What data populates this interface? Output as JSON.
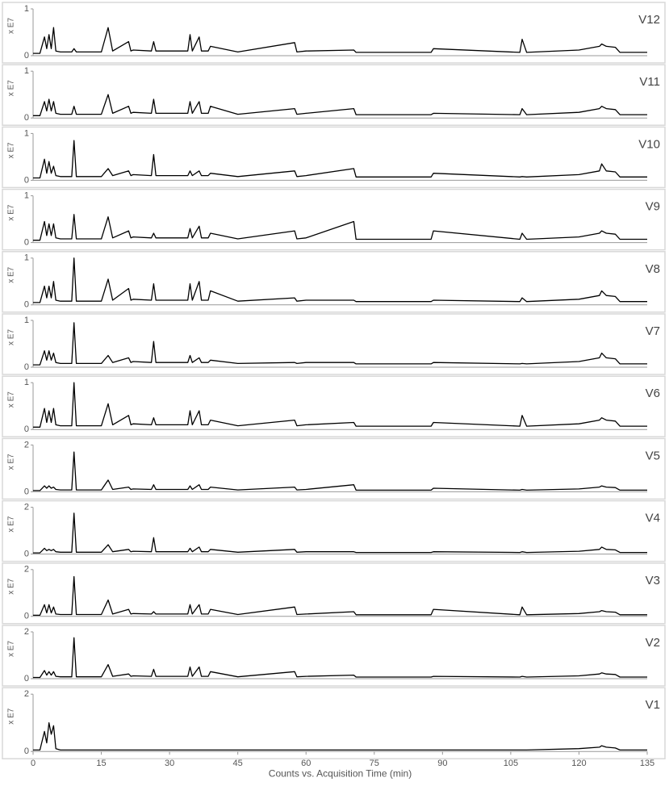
{
  "chart_data": [
    {
      "type": "line",
      "label": "V12",
      "ylabel": "x E7",
      "xlim": [
        0,
        135
      ],
      "ylim": [
        0,
        1
      ],
      "yticks": [
        0,
        1
      ],
      "color": "#000000",
      "x": [
        0,
        1.5,
        2.5,
        3,
        3.5,
        4,
        4.5,
        5,
        6,
        8.5,
        9,
        9.5,
        15,
        16.5,
        17.5,
        21,
        21.5,
        22,
        26,
        26.5,
        27,
        34,
        34.5,
        35,
        36.5,
        37,
        38.5,
        39,
        45,
        57.5,
        58,
        60,
        70.5,
        71,
        87.5,
        88,
        107,
        107.5,
        108.5,
        120,
        124.5,
        125,
        126,
        128,
        129,
        135
      ],
      "values": [
        0.05,
        0.05,
        0.4,
        0.15,
        0.45,
        0.15,
        0.6,
        0.1,
        0.08,
        0.08,
        0.15,
        0.08,
        0.08,
        0.6,
        0.1,
        0.3,
        0.1,
        0.12,
        0.1,
        0.3,
        0.1,
        0.1,
        0.45,
        0.1,
        0.4,
        0.1,
        0.1,
        0.2,
        0.08,
        0.28,
        0.08,
        0.1,
        0.12,
        0.07,
        0.07,
        0.15,
        0.07,
        0.35,
        0.07,
        0.12,
        0.2,
        0.25,
        0.2,
        0.18,
        0.07,
        0.07
      ]
    },
    {
      "type": "line",
      "label": "V11",
      "ylabel": "x E7",
      "xlim": [
        0,
        135
      ],
      "ylim": [
        0,
        1
      ],
      "yticks": [
        0,
        1
      ],
      "color": "#000000",
      "x": [
        0,
        1.5,
        2.5,
        3,
        3.5,
        4,
        4.5,
        5,
        6,
        8.5,
        9,
        9.5,
        15,
        16.5,
        17.5,
        21,
        21.5,
        22,
        26,
        26.5,
        27,
        34,
        34.5,
        35,
        36.5,
        37,
        38.5,
        39,
        45,
        57.5,
        58,
        60,
        70.5,
        71,
        87.5,
        88,
        107,
        107.5,
        108.5,
        120,
        124.5,
        125,
        126,
        128,
        129,
        135
      ],
      "values": [
        0.05,
        0.05,
        0.35,
        0.15,
        0.4,
        0.15,
        0.35,
        0.1,
        0.08,
        0.08,
        0.25,
        0.08,
        0.08,
        0.5,
        0.1,
        0.25,
        0.1,
        0.12,
        0.1,
        0.4,
        0.1,
        0.1,
        0.35,
        0.1,
        0.35,
        0.1,
        0.1,
        0.25,
        0.08,
        0.2,
        0.08,
        0.1,
        0.2,
        0.07,
        0.07,
        0.1,
        0.07,
        0.2,
        0.07,
        0.12,
        0.2,
        0.25,
        0.2,
        0.18,
        0.07,
        0.07
      ]
    },
    {
      "type": "line",
      "label": "V10",
      "ylabel": "x E7",
      "xlim": [
        0,
        135
      ],
      "ylim": [
        0,
        1
      ],
      "yticks": [
        0,
        1
      ],
      "color": "#000000",
      "x": [
        0,
        1.5,
        2.5,
        3,
        3.5,
        4,
        4.5,
        5,
        6,
        8.5,
        9,
        9.5,
        15,
        16.5,
        17.5,
        21,
        21.5,
        22,
        26,
        26.5,
        27,
        34,
        34.5,
        35,
        36.5,
        37,
        38.5,
        39,
        45,
        57.5,
        58,
        60,
        70.5,
        71,
        87.5,
        88,
        107,
        107.5,
        108.5,
        120,
        124.5,
        125,
        126,
        128,
        129,
        135
      ],
      "values": [
        0.05,
        0.05,
        0.45,
        0.15,
        0.4,
        0.15,
        0.3,
        0.1,
        0.08,
        0.08,
        0.85,
        0.08,
        0.08,
        0.25,
        0.1,
        0.2,
        0.1,
        0.12,
        0.1,
        0.55,
        0.1,
        0.1,
        0.2,
        0.1,
        0.2,
        0.1,
        0.1,
        0.15,
        0.08,
        0.2,
        0.08,
        0.1,
        0.25,
        0.07,
        0.07,
        0.15,
        0.07,
        0.08,
        0.07,
        0.12,
        0.2,
        0.35,
        0.2,
        0.18,
        0.07,
        0.07
      ]
    },
    {
      "type": "line",
      "label": "V9",
      "ylabel": "x E7",
      "xlim": [
        0,
        135
      ],
      "ylim": [
        0,
        1
      ],
      "yticks": [
        0,
        1
      ],
      "color": "#000000",
      "x": [
        0,
        1.5,
        2.5,
        3,
        3.5,
        4,
        4.5,
        5,
        6,
        8.5,
        9,
        9.5,
        15,
        16.5,
        17.5,
        21,
        21.5,
        22,
        26,
        26.5,
        27,
        34,
        34.5,
        35,
        36.5,
        37,
        38.5,
        39,
        45,
        57.5,
        58,
        60,
        70.5,
        71,
        87.5,
        88,
        107,
        107.5,
        108.5,
        120,
        124.5,
        125,
        126,
        128,
        129,
        135
      ],
      "values": [
        0.05,
        0.05,
        0.45,
        0.15,
        0.4,
        0.15,
        0.4,
        0.1,
        0.08,
        0.08,
        0.6,
        0.08,
        0.08,
        0.55,
        0.1,
        0.25,
        0.1,
        0.12,
        0.1,
        0.2,
        0.1,
        0.1,
        0.3,
        0.1,
        0.35,
        0.1,
        0.1,
        0.2,
        0.08,
        0.25,
        0.08,
        0.1,
        0.45,
        0.07,
        0.07,
        0.25,
        0.07,
        0.2,
        0.07,
        0.12,
        0.2,
        0.25,
        0.2,
        0.18,
        0.07,
        0.07
      ]
    },
    {
      "type": "line",
      "label": "V8",
      "ylabel": "x E7",
      "xlim": [
        0,
        135
      ],
      "ylim": [
        0,
        1
      ],
      "yticks": [
        0,
        1
      ],
      "color": "#000000",
      "x": [
        0,
        1.5,
        2.5,
        3,
        3.5,
        4,
        4.5,
        5,
        6,
        8.5,
        9,
        9.5,
        15,
        16.5,
        17.5,
        21,
        21.5,
        22,
        26,
        26.5,
        27,
        34,
        34.5,
        35,
        36.5,
        37,
        38.5,
        39,
        45,
        57.5,
        58,
        60,
        70.5,
        71,
        87.5,
        88,
        107,
        107.5,
        108.5,
        120,
        124.5,
        125,
        126,
        128,
        129,
        135
      ],
      "values": [
        0.05,
        0.05,
        0.4,
        0.15,
        0.4,
        0.15,
        0.5,
        0.1,
        0.08,
        0.08,
        1,
        0.08,
        0.08,
        0.55,
        0.1,
        0.35,
        0.1,
        0.12,
        0.1,
        0.45,
        0.1,
        0.1,
        0.45,
        0.1,
        0.5,
        0.1,
        0.1,
        0.3,
        0.08,
        0.15,
        0.08,
        0.1,
        0.1,
        0.07,
        0.07,
        0.1,
        0.07,
        0.15,
        0.07,
        0.12,
        0.2,
        0.3,
        0.2,
        0.18,
        0.07,
        0.07
      ]
    },
    {
      "type": "line",
      "label": "V7",
      "ylabel": "x E7",
      "xlim": [
        0,
        135
      ],
      "ylim": [
        0,
        1
      ],
      "yticks": [
        0,
        1
      ],
      "color": "#000000",
      "x": [
        0,
        1.5,
        2.5,
        3,
        3.5,
        4,
        4.5,
        5,
        6,
        8.5,
        9,
        9.5,
        15,
        16.5,
        17.5,
        21,
        21.5,
        22,
        26,
        26.5,
        27,
        34,
        34.5,
        35,
        36.5,
        37,
        38.5,
        39,
        45,
        57.5,
        58,
        60,
        70.5,
        71,
        87.5,
        88,
        107,
        107.5,
        108.5,
        120,
        124.5,
        125,
        126,
        128,
        129,
        135
      ],
      "values": [
        0.05,
        0.05,
        0.35,
        0.15,
        0.35,
        0.15,
        0.3,
        0.1,
        0.08,
        0.08,
        0.95,
        0.08,
        0.08,
        0.25,
        0.1,
        0.2,
        0.1,
        0.12,
        0.1,
        0.55,
        0.1,
        0.1,
        0.25,
        0.1,
        0.2,
        0.1,
        0.1,
        0.15,
        0.08,
        0.1,
        0.08,
        0.1,
        0.1,
        0.07,
        0.07,
        0.1,
        0.07,
        0.08,
        0.07,
        0.12,
        0.2,
        0.3,
        0.2,
        0.18,
        0.07,
        0.07
      ]
    },
    {
      "type": "line",
      "label": "V6",
      "ylabel": "x E7",
      "xlim": [
        0,
        135
      ],
      "ylim": [
        0,
        1
      ],
      "yticks": [
        0,
        1
      ],
      "color": "#000000",
      "x": [
        0,
        1.5,
        2.5,
        3,
        3.5,
        4,
        4.5,
        5,
        6,
        8.5,
        9,
        9.5,
        15,
        16.5,
        17.5,
        21,
        21.5,
        22,
        26,
        26.5,
        27,
        34,
        34.5,
        35,
        36.5,
        37,
        38.5,
        39,
        45,
        57.5,
        58,
        60,
        70.5,
        71,
        87.5,
        88,
        107,
        107.5,
        108.5,
        120,
        124.5,
        125,
        126,
        128,
        129,
        135
      ],
      "values": [
        0.05,
        0.05,
        0.45,
        0.15,
        0.4,
        0.15,
        0.45,
        0.1,
        0.08,
        0.08,
        1,
        0.08,
        0.08,
        0.55,
        0.1,
        0.3,
        0.1,
        0.12,
        0.1,
        0.25,
        0.1,
        0.1,
        0.4,
        0.1,
        0.4,
        0.1,
        0.1,
        0.2,
        0.08,
        0.2,
        0.08,
        0.1,
        0.15,
        0.07,
        0.07,
        0.15,
        0.07,
        0.3,
        0.07,
        0.12,
        0.2,
        0.25,
        0.2,
        0.18,
        0.07,
        0.07
      ]
    },
    {
      "type": "line",
      "label": "V5",
      "ylabel": "x E7",
      "xlim": [
        0,
        135
      ],
      "ylim": [
        0,
        2
      ],
      "yticks": [
        0,
        2
      ],
      "color": "#000000",
      "x": [
        0,
        1.5,
        2.5,
        3,
        3.5,
        4,
        4.5,
        5,
        6,
        8.5,
        9,
        9.5,
        15,
        16.5,
        17.5,
        21,
        21.5,
        22,
        26,
        26.5,
        27,
        34,
        34.5,
        35,
        36.5,
        37,
        38.5,
        39,
        45,
        57.5,
        58,
        60,
        70.5,
        71,
        87.5,
        88,
        107,
        107.5,
        108.5,
        120,
        124.5,
        125,
        126,
        128,
        129,
        135
      ],
      "values": [
        0.05,
        0.05,
        0.25,
        0.15,
        0.25,
        0.15,
        0.2,
        0.1,
        0.08,
        0.08,
        1.7,
        0.08,
        0.08,
        0.5,
        0.1,
        0.2,
        0.1,
        0.12,
        0.1,
        0.3,
        0.1,
        0.1,
        0.25,
        0.1,
        0.3,
        0.1,
        0.1,
        0.2,
        0.08,
        0.2,
        0.08,
        0.1,
        0.3,
        0.07,
        0.07,
        0.15,
        0.07,
        0.1,
        0.07,
        0.12,
        0.2,
        0.25,
        0.2,
        0.18,
        0.07,
        0.07
      ]
    },
    {
      "type": "line",
      "label": "V4",
      "ylabel": "x E7",
      "xlim": [
        0,
        135
      ],
      "ylim": [
        0,
        2
      ],
      "yticks": [
        0,
        2
      ],
      "color": "#000000",
      "x": [
        0,
        1.5,
        2.5,
        3,
        3.5,
        4,
        4.5,
        5,
        6,
        8.5,
        9,
        9.5,
        15,
        16.5,
        17.5,
        21,
        21.5,
        22,
        26,
        26.5,
        27,
        34,
        34.5,
        35,
        36.5,
        37,
        38.5,
        39,
        45,
        57.5,
        58,
        60,
        70.5,
        71,
        87.5,
        88,
        107,
        107.5,
        108.5,
        120,
        124.5,
        125,
        126,
        128,
        129,
        135
      ],
      "values": [
        0.05,
        0.05,
        0.25,
        0.15,
        0.2,
        0.15,
        0.2,
        0.1,
        0.08,
        0.08,
        1.75,
        0.08,
        0.08,
        0.4,
        0.1,
        0.2,
        0.1,
        0.12,
        0.1,
        0.7,
        0.1,
        0.1,
        0.25,
        0.1,
        0.3,
        0.1,
        0.1,
        0.2,
        0.08,
        0.2,
        0.08,
        0.1,
        0.1,
        0.07,
        0.07,
        0.1,
        0.07,
        0.1,
        0.07,
        0.12,
        0.2,
        0.3,
        0.2,
        0.18,
        0.07,
        0.07
      ]
    },
    {
      "type": "line",
      "label": "V3",
      "ylabel": "x E7",
      "xlim": [
        0,
        135
      ],
      "ylim": [
        0,
        2
      ],
      "yticks": [
        0,
        2
      ],
      "color": "#000000",
      "x": [
        0,
        1.5,
        2.5,
        3,
        3.5,
        4,
        4.5,
        5,
        6,
        8.5,
        9,
        9.5,
        15,
        16.5,
        17.5,
        21,
        21.5,
        22,
        26,
        26.5,
        27,
        34,
        34.5,
        35,
        36.5,
        37,
        38.5,
        39,
        45,
        57.5,
        58,
        60,
        70.5,
        71,
        87.5,
        88,
        107,
        107.5,
        108.5,
        120,
        124.5,
        125,
        126,
        128,
        129,
        135
      ],
      "values": [
        0.05,
        0.05,
        0.5,
        0.15,
        0.5,
        0.15,
        0.4,
        0.1,
        0.08,
        0.08,
        1.7,
        0.08,
        0.08,
        0.7,
        0.1,
        0.3,
        0.1,
        0.12,
        0.1,
        0.2,
        0.1,
        0.1,
        0.5,
        0.1,
        0.5,
        0.1,
        0.1,
        0.3,
        0.08,
        0.4,
        0.08,
        0.1,
        0.2,
        0.07,
        0.07,
        0.3,
        0.07,
        0.4,
        0.07,
        0.12,
        0.2,
        0.25,
        0.2,
        0.18,
        0.07,
        0.07
      ]
    },
    {
      "type": "line",
      "label": "V2",
      "ylabel": "x E7",
      "xlim": [
        0,
        135
      ],
      "ylim": [
        0,
        2
      ],
      "yticks": [
        0,
        2
      ],
      "color": "#000000",
      "x": [
        0,
        1.5,
        2.5,
        3,
        3.5,
        4,
        4.5,
        5,
        6,
        8.5,
        9,
        9.5,
        15,
        16.5,
        17.5,
        21,
        21.5,
        22,
        26,
        26.5,
        27,
        34,
        34.5,
        35,
        36.5,
        37,
        38.5,
        39,
        45,
        57.5,
        58,
        60,
        70.5,
        71,
        87.5,
        88,
        107,
        107.5,
        108.5,
        120,
        124.5,
        125,
        126,
        128,
        129,
        135
      ],
      "values": [
        0.05,
        0.05,
        0.35,
        0.15,
        0.3,
        0.15,
        0.3,
        0.1,
        0.08,
        0.08,
        1.75,
        0.08,
        0.08,
        0.6,
        0.1,
        0.2,
        0.1,
        0.12,
        0.1,
        0.4,
        0.1,
        0.1,
        0.5,
        0.1,
        0.5,
        0.1,
        0.1,
        0.3,
        0.08,
        0.3,
        0.08,
        0.1,
        0.15,
        0.07,
        0.07,
        0.1,
        0.07,
        0.1,
        0.07,
        0.12,
        0.2,
        0.25,
        0.2,
        0.18,
        0.07,
        0.07
      ]
    },
    {
      "type": "line",
      "label": "V1",
      "ylabel": "x E7",
      "xlabel": "Counts vs. Acquisition Time (min)",
      "xlim": [
        0,
        135
      ],
      "ylim": [
        0,
        2
      ],
      "yticks": [
        0,
        2
      ],
      "xticks": [
        0,
        15,
        30,
        45,
        60,
        75,
        90,
        105,
        120,
        135
      ],
      "color": "#000000",
      "x": [
        0,
        1.5,
        2.5,
        3,
        3.5,
        4,
        4.5,
        5,
        6,
        8.5,
        9,
        9.5,
        15,
        16.5,
        17.5,
        21,
        21.5,
        22,
        26,
        26.5,
        27,
        34,
        34.5,
        35,
        36.5,
        37,
        38.5,
        39,
        45,
        57.5,
        58,
        60,
        70.5,
        71,
        87.5,
        88,
        107,
        107.5,
        108.5,
        120,
        124.5,
        125,
        126,
        128,
        129,
        135
      ],
      "values": [
        0.05,
        0.05,
        0.7,
        0.3,
        1,
        0.6,
        0.9,
        0.1,
        0.05,
        0.05,
        0.05,
        0.05,
        0.05,
        0.05,
        0.05,
        0.05,
        0.05,
        0.05,
        0.05,
        0.05,
        0.05,
        0.05,
        0.05,
        0.05,
        0.05,
        0.05,
        0.05,
        0.05,
        0.05,
        0.05,
        0.05,
        0.05,
        0.05,
        0.05,
        0.05,
        0.05,
        0.05,
        0.05,
        0.05,
        0.1,
        0.15,
        0.2,
        0.15,
        0.12,
        0.05,
        0.05
      ]
    }
  ]
}
